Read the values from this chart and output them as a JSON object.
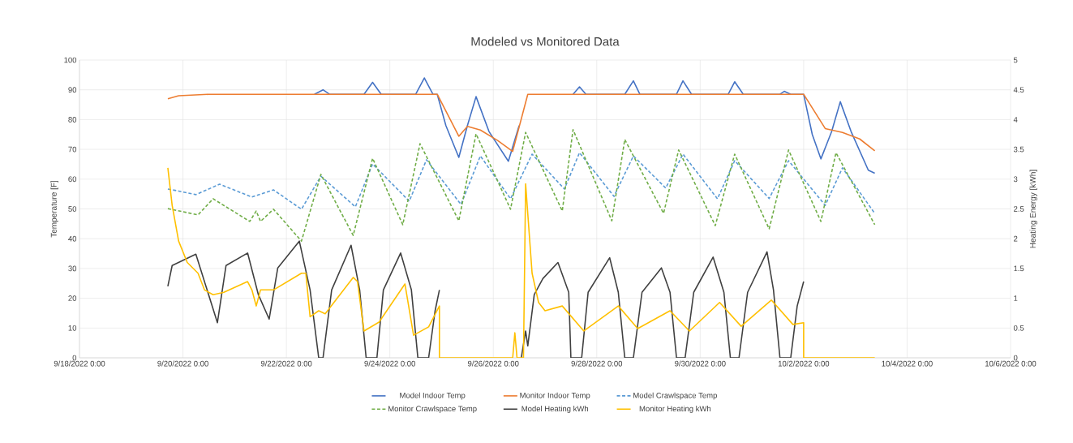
{
  "chart_data": {
    "type": "line",
    "title": "Modeled vs Monitored Data",
    "ylabel": "Temperature [F]",
    "y2label": "Heating Energy [kWh]",
    "xlim": [
      "2022-09-18",
      "2022-10-06"
    ],
    "xticks": [
      {
        "value": "2022-09-18",
        "label": "9/18/2022 0:00"
      },
      {
        "value": "2022-09-20",
        "label": "9/20/2022 0:00"
      },
      {
        "value": "2022-09-22",
        "label": "9/22/2022 0:00"
      },
      {
        "value": "2022-09-24",
        "label": "9/24/2022 0:00"
      },
      {
        "value": "2022-09-26",
        "label": "9/26/2022 0:00"
      },
      {
        "value": "2022-09-28",
        "label": "9/28/2022 0:00"
      },
      {
        "value": "2022-09-30",
        "label": "9/30/2022 0:00"
      },
      {
        "value": "2022-10-02",
        "label": "10/2/2022 0:00"
      },
      {
        "value": "2022-10-04",
        "label": "10/4/2022 0:00"
      },
      {
        "value": "2022-10-06",
        "label": "10/6/2022 0:00"
      }
    ],
    "ylim": [
      0,
      100
    ],
    "yticks": [
      0,
      10,
      20,
      30,
      40,
      50,
      60,
      70,
      80,
      90,
      100
    ],
    "y2lim": [
      0,
      5
    ],
    "y2ticks": [
      0,
      0.5,
      1,
      1.5,
      2,
      2.5,
      3,
      3.5,
      4,
      4.5,
      5
    ],
    "grid": true,
    "legend": "bottom",
    "series": [
      {
        "name": "Model Indoor Temp",
        "color": "#4472c4",
        "line_style": "solid",
        "x": [
          "2022-09-22T13:00",
          "2022-09-22T17:00",
          "2022-09-22T20:00",
          "2022-09-23T12:00",
          "2022-09-23T16:00",
          "2022-09-23T20:00",
          "2022-09-24T12:00",
          "2022-09-24T16:00",
          "2022-09-24T20:00",
          "2022-09-24T22:00",
          "2022-09-25T02:00",
          "2022-09-25T08:00",
          "2022-09-25T12:00",
          "2022-09-25T16:00",
          "2022-09-25T22:00",
          "2022-09-26T07:00",
          "2022-09-26T12:00",
          "2022-09-26T16:00",
          "2022-09-27T13:00",
          "2022-09-27T16:00",
          "2022-09-27T19:00",
          "2022-09-28T13:00",
          "2022-09-28T17:00",
          "2022-09-28T20:00",
          "2022-09-29T13:00",
          "2022-09-29T16:00",
          "2022-09-29T20:00",
          "2022-09-30T13:00",
          "2022-09-30T16:00",
          "2022-09-30T20:00",
          "2022-10-01T13:00",
          "2022-10-01T15:00",
          "2022-10-01T18:00",
          "2022-10-02T00:00",
          "2022-10-02T04:00",
          "2022-10-02T08:00",
          "2022-10-02T13:00",
          "2022-10-02T17:00",
          "2022-10-02T22:00",
          "2022-10-03T06:00",
          "2022-10-03T09:00"
        ],
        "values": [
          88.5,
          90,
          88.5,
          88.5,
          92.5,
          88.5,
          88.5,
          94,
          88.5,
          88.5,
          78,
          67.3,
          78,
          87.7,
          76,
          66,
          78,
          null,
          88.5,
          91,
          88.5,
          88.5,
          93,
          88.5,
          88.5,
          93,
          88.5,
          88.5,
          92.7,
          88.5,
          88.5,
          89.5,
          88.5,
          88.5,
          75,
          66.8,
          76,
          86,
          76,
          63,
          62
        ]
      },
      {
        "name": "Monitor Indoor Temp",
        "color": "#ed7d31",
        "line_style": "solid",
        "x": [
          "2022-09-19T17:00",
          "2022-09-19T22:00",
          "2022-09-20T12:00",
          "2022-09-24T22:00",
          "2022-09-25T08:00",
          "2022-09-25T12:00",
          "2022-09-25T18:00",
          "2022-09-26T02:00",
          "2022-09-26T09:00",
          "2022-09-26T16:00",
          "2022-10-02T00:00",
          "2022-10-02T10:00",
          "2022-10-02T18:00",
          "2022-10-03T02:00",
          "2022-10-03T09:00"
        ],
        "values": [
          87,
          88,
          88.5,
          88.5,
          74.4,
          77.7,
          76.5,
          73,
          69.3,
          88.5,
          88.5,
          77,
          75.7,
          73.5,
          69.5
        ]
      },
      {
        "name": "Model Crawlspace Temp",
        "color": "#5b9bd5",
        "line_style": "dashed",
        "x": [
          "2022-09-19T17:00",
          "2022-09-19T22:00",
          "2022-09-20T06:00",
          "2022-09-20T17:00",
          "2022-09-21T08:00",
          "2022-09-21T18:00",
          "2022-09-22T07:00",
          "2022-09-22T16:00",
          "2022-09-23T08:00",
          "2022-09-23T16:00",
          "2022-09-24T09:00",
          "2022-09-24T17:00",
          "2022-09-25T09:00",
          "2022-09-25T18:00",
          "2022-09-26T08:00",
          "2022-09-26T18:00",
          "2022-09-27T09:00",
          "2022-09-27T16:00",
          "2022-09-28T08:00",
          "2022-09-28T17:00",
          "2022-09-29T08:00",
          "2022-09-29T16:00",
          "2022-09-30T08:00",
          "2022-09-30T16:00",
          "2022-10-01T08:00",
          "2022-10-01T17:00",
          "2022-10-02T10:00",
          "2022-10-02T18:00",
          "2022-10-03T09:00"
        ],
        "values": [
          56.7,
          56,
          54.8,
          58.3,
          54,
          56.4,
          49.9,
          61,
          50.7,
          65.1,
          52.6,
          66.5,
          51.5,
          67.8,
          53.4,
          68.4,
          56.7,
          68.9,
          54.2,
          67.8,
          57,
          68.4,
          53.4,
          66.2,
          53.5,
          66.2,
          51.2,
          63.8,
          48.5
        ]
      },
      {
        "name": "Monitor Crawlspace Temp",
        "color": "#70ad47",
        "line_style": "dashed",
        "x": [
          "2022-09-19T17:00",
          "2022-09-20T07:00",
          "2022-09-20T14:00",
          "2022-09-21T07:00",
          "2022-09-21T10:00",
          "2022-09-21T12:00",
          "2022-09-21T18:00",
          "2022-09-22T07:00",
          "2022-09-22T16:00",
          "2022-09-23T07:00",
          "2022-09-23T16:00",
          "2022-09-24T06:00",
          "2022-09-24T14:00",
          "2022-09-25T08:00",
          "2022-09-25T16:00",
          "2022-09-26T08:00",
          "2022-09-26T15:00",
          "2022-09-27T08:00",
          "2022-09-27T13:00",
          "2022-09-28T07:00",
          "2022-09-28T13:00",
          "2022-09-29T07:00",
          "2022-09-29T14:00",
          "2022-09-30T07:00",
          "2022-09-30T16:00",
          "2022-10-01T08:00",
          "2022-10-01T17:00",
          "2022-10-02T08:00",
          "2022-10-02T15:00",
          "2022-10-03T09:00"
        ],
        "values": [
          50.1,
          48,
          53.4,
          45.8,
          49.3,
          45.8,
          49.9,
          39.2,
          61.6,
          41.1,
          67,
          44.7,
          71.9,
          46,
          75.2,
          49.9,
          75.7,
          49.3,
          76.6,
          46,
          73.3,
          48.5,
          69.8,
          44.4,
          68.4,
          43.3,
          69.8,
          45.8,
          68.9,
          44.7
        ]
      },
      {
        "name": "Model Heating kWh",
        "color": "#404040",
        "line_style": "solid",
        "axis": "y2",
        "x": [
          "2022-09-19T17:00",
          "2022-09-19T19:00",
          "2022-09-20T06:00",
          "2022-09-20T16:00",
          "2022-09-20T20:00",
          "2022-09-21T06:00",
          "2022-09-21T11:00",
          "2022-09-21T16:00",
          "2022-09-21T20:00",
          "2022-09-22T06:00",
          "2022-09-22T11:00",
          "2022-09-22T15:00",
          "2022-09-22T17:00",
          "2022-09-22T21:00",
          "2022-09-23T06:00",
          "2022-09-23T10:00",
          "2022-09-23T13:00",
          "2022-09-23T18:00",
          "2022-09-23T21:00",
          "2022-09-24T05:00",
          "2022-09-24T10:00",
          "2022-09-24T13:00",
          "2022-09-24T18:00",
          "2022-09-24T21:00",
          "2022-09-24T23:00",
          "2022-09-25T12:00",
          "2022-09-26T13:00",
          "2022-09-26T15:00",
          "2022-09-26T16:00",
          "2022-09-26T19:00",
          "2022-09-26T23:00",
          "2022-09-27T06:00",
          "2022-09-27T11:00",
          "2022-09-27T12:00",
          "2022-09-27T17:00",
          "2022-09-27T20:00",
          "2022-09-28T06:00",
          "2022-09-28T10:00",
          "2022-09-28T13:00",
          "2022-09-28T17:00",
          "2022-09-28T21:00",
          "2022-09-29T06:00",
          "2022-09-29T10:00",
          "2022-09-29T13:00",
          "2022-09-29T17:00",
          "2022-09-29T21:00",
          "2022-09-30T06:00",
          "2022-09-30T11:00",
          "2022-09-30T14:00",
          "2022-09-30T18:00",
          "2022-09-30T22:00",
          "2022-10-01T07:00",
          "2022-10-01T10:00",
          "2022-10-01T13:00",
          "2022-10-01T18:00",
          "2022-10-01T21:00",
          "2022-10-02T00:00"
        ],
        "values": [
          1.2,
          1.55,
          1.74,
          0.59,
          1.55,
          1.76,
          1.06,
          0.65,
          1.51,
          1.96,
          1.14,
          0,
          0,
          1.14,
          1.89,
          1.14,
          0,
          0,
          1.14,
          1.76,
          1.14,
          0,
          0,
          0.79,
          1.14,
          null,
          0,
          0.45,
          0.2,
          1.06,
          1.33,
          1.6,
          1.1,
          0,
          0,
          1.1,
          1.68,
          1.1,
          0,
          0,
          1.1,
          1.51,
          1.1,
          0,
          0,
          1.1,
          1.69,
          1.1,
          0,
          0,
          1.1,
          1.78,
          1.14,
          0,
          0,
          0.87,
          1.28
        ]
      },
      {
        "name": "Monitor Heating kWh",
        "color": "#ffc000",
        "line_style": "solid",
        "axis": "y2",
        "x": [
          "2022-09-19T17:00",
          "2022-09-19T19:00",
          "2022-09-19T22:00",
          "2022-09-20T02:00",
          "2022-09-20T07:00",
          "2022-09-20T10:00",
          "2022-09-20T14:00",
          "2022-09-20T19:00",
          "2022-09-21T06:00",
          "2022-09-21T08:00",
          "2022-09-21T10:00",
          "2022-09-21T12:00",
          "2022-09-21T18:00",
          "2022-09-22T07:00",
          "2022-09-22T09:00",
          "2022-09-22T11:00",
          "2022-09-22T15:00",
          "2022-09-22T18:00",
          "2022-09-23T07:00",
          "2022-09-23T09:00",
          "2022-09-23T12:00",
          "2022-09-23T19:00",
          "2022-09-24T07:00",
          "2022-09-24T11:00",
          "2022-09-24T18:00",
          "2022-09-24T23:00",
          "2022-09-24T23:00",
          "2022-09-26T09:00",
          "2022-09-26T10:00",
          "2022-09-26T11:00",
          "2022-09-26T14:00",
          "2022-09-26T15:00",
          "2022-09-26T18:00",
          "2022-09-26T21:00",
          "2022-09-27T00:00",
          "2022-09-27T08:00",
          "2022-09-27T18:00",
          "2022-09-28T10:00",
          "2022-09-28T19:00",
          "2022-09-29T10:00",
          "2022-09-29T19:00",
          "2022-09-30T09:00",
          "2022-09-30T19:00",
          "2022-10-01T09:00",
          "2022-10-01T19:00",
          "2022-10-02T00:00",
          "2022-10-02T00:00",
          "2022-10-03T09:00"
        ],
        "values": [
          3.19,
          2.56,
          1.96,
          1.6,
          1.42,
          1.14,
          1.06,
          1.1,
          1.28,
          1.14,
          0.87,
          1.14,
          1.14,
          1.42,
          1.42,
          0.69,
          0.79,
          0.74,
          1.35,
          1.28,
          0.45,
          0.6,
          1.24,
          0.38,
          0.52,
          0.87,
          0,
          0,
          0.42,
          0,
          0,
          2.92,
          1.42,
          0.93,
          0.79,
          0.87,
          0.45,
          0.87,
          0.49,
          0.79,
          0.45,
          0.93,
          0.53,
          0.97,
          0.56,
          0.59,
          0,
          0
        ]
      }
    ]
  }
}
